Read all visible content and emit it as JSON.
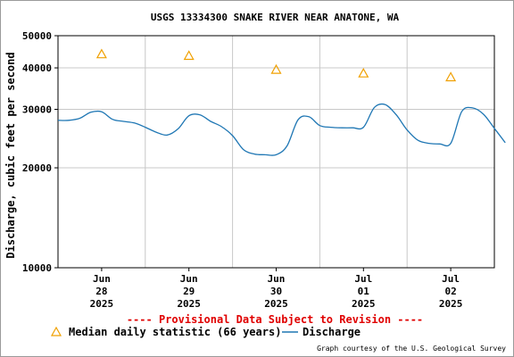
{
  "chart_data": {
    "type": "line",
    "title": "USGS 13334300 SNAKE RIVER NEAR ANATONE, WA",
    "ylabel": "Discharge, cubic feet per second",
    "y_scale": "log",
    "ylim": [
      10000,
      50000
    ],
    "y_ticks": [
      {
        "value": 10000,
        "label": "10000"
      },
      {
        "value": 20000,
        "label": "20000"
      },
      {
        "value": 30000,
        "label": "30000"
      },
      {
        "value": 40000,
        "label": "40000"
      },
      {
        "value": 50000,
        "label": "50000"
      }
    ],
    "xlim": [
      "2025-06-27T12:00",
      "2025-07-02T12:00"
    ],
    "x_ticks": [
      {
        "value": "2025-06-28T00:00",
        "month": "Jun",
        "day": "28",
        "year": "2025"
      },
      {
        "value": "2025-06-29T00:00",
        "month": "Jun",
        "day": "29",
        "year": "2025"
      },
      {
        "value": "2025-06-30T00:00",
        "month": "Jun",
        "day": "30",
        "year": "2025"
      },
      {
        "value": "2025-07-01T00:00",
        "month": "Jul",
        "day": "01",
        "year": "2025"
      },
      {
        "value": "2025-07-02T00:00",
        "month": "Jul",
        "day": "02",
        "year": "2025"
      }
    ],
    "grid": true,
    "legend_position": "bottom",
    "series": [
      {
        "name": "Median daily statistic (66 years)",
        "kind": "markers",
        "marker": "triangle",
        "color": "#f0a000",
        "x": [
          "2025-06-28T00:00",
          "2025-06-29T00:00",
          "2025-06-30T00:00",
          "2025-07-01T00:00",
          "2025-07-02T00:00"
        ],
        "y": [
          44000,
          43500,
          39500,
          38500,
          37500
        ]
      },
      {
        "name": "Discharge",
        "kind": "line",
        "color": "#1f77b4",
        "x": [
          "2025-06-27T12:00",
          "2025-06-27T15:00",
          "2025-06-27T18:00",
          "2025-06-27T21:00",
          "2025-06-28T00:00",
          "2025-06-28T03:00",
          "2025-06-28T06:00",
          "2025-06-28T09:00",
          "2025-06-28T12:00",
          "2025-06-28T15:00",
          "2025-06-28T18:00",
          "2025-06-28T21:00",
          "2025-06-29T00:00",
          "2025-06-29T03:00",
          "2025-06-29T06:00",
          "2025-06-29T09:00",
          "2025-06-29T12:00",
          "2025-06-29T15:00",
          "2025-06-29T18:00",
          "2025-06-29T21:00",
          "2025-06-30T00:00",
          "2025-06-30T03:00",
          "2025-06-30T06:00",
          "2025-06-30T09:00",
          "2025-06-30T12:00",
          "2025-06-30T15:00",
          "2025-06-30T18:00",
          "2025-06-30T21:00",
          "2025-07-01T00:00",
          "2025-07-01T03:00",
          "2025-07-01T06:00",
          "2025-07-01T09:00",
          "2025-07-01T12:00",
          "2025-07-01T15:00",
          "2025-07-01T18:00",
          "2025-07-01T21:00",
          "2025-07-02T00:00",
          "2025-07-02T03:00",
          "2025-07-02T06:00"
        ],
        "y": [
          27800,
          27800,
          28200,
          29400,
          29500,
          28000,
          27600,
          27300,
          26500,
          25600,
          25100,
          26200,
          28700,
          28900,
          27600,
          26600,
          25000,
          22700,
          22000,
          21900,
          21900,
          23300,
          27900,
          28500,
          26800,
          26500,
          26400,
          26400,
          26500,
          30400,
          31000,
          28900,
          26000,
          24200,
          23700,
          23600,
          23700,
          29500,
          30300
        ],
        "extra_x": [
          "2025-07-02T09:00",
          "2025-07-02T12:00",
          "2025-07-02T15:00"
        ],
        "extra_y": [
          29000,
          26300,
          23800
        ]
      }
    ],
    "annotation": "---- Provisional Data Subject to Revision ----"
  },
  "footer": {
    "credit": "Graph courtesy of the U.S. Geological Survey"
  },
  "colors": {
    "grid": "#c8c8c8",
    "axis": "#000000",
    "provisional": "#e00000"
  }
}
